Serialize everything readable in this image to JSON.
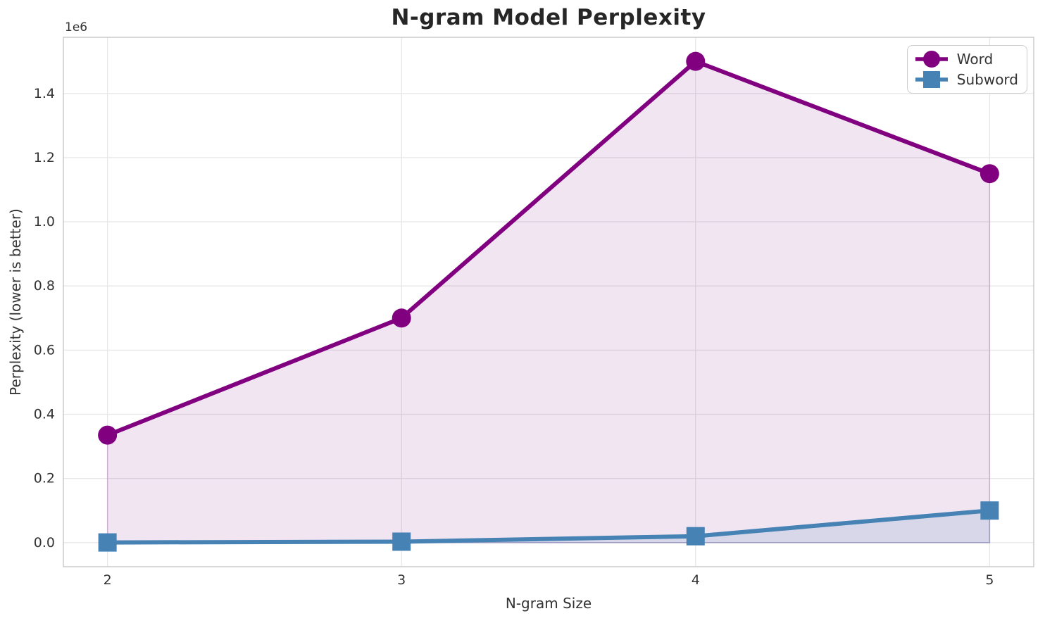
{
  "chart_data": {
    "type": "line",
    "title": "N-gram Model Perplexity",
    "xlabel": "N-gram Size",
    "ylabel": "Perplexity (lower is better)",
    "y_offset_label": "1e6",
    "x": [
      2,
      3,
      4,
      5
    ],
    "series": [
      {
        "name": "Word",
        "color": "#800080",
        "marker": "circle",
        "values": [
          335000,
          700000,
          1500000,
          1150000
        ],
        "fill_alpha": 0.1
      },
      {
        "name": "Subword",
        "color": "#4682b4",
        "marker": "square",
        "values": [
          500,
          3000,
          20000,
          100000
        ],
        "fill_alpha": 0.15
      }
    ],
    "x_tick_values": [
      2,
      3,
      4,
      5
    ],
    "x_tick_labels": [
      "2",
      "3",
      "4",
      "5"
    ],
    "y_tick_values": [
      0,
      200000,
      400000,
      600000,
      800000,
      1000000,
      1200000,
      1400000
    ],
    "y_tick_labels": [
      "0.0",
      "0.2",
      "0.4",
      "0.6",
      "0.8",
      "1.0",
      "1.2",
      "1.4"
    ],
    "xlim": [
      1.85,
      5.15
    ],
    "ylim": [
      -75000,
      1575000
    ],
    "grid": true,
    "legend_position": "upper right",
    "colors": {
      "background": "#ffffff",
      "grid": "#e7e7e7",
      "spine": "#c8c8c8",
      "title_text": "#262626",
      "tick_text": "#333333",
      "legend_border": "#cccccc"
    }
  }
}
